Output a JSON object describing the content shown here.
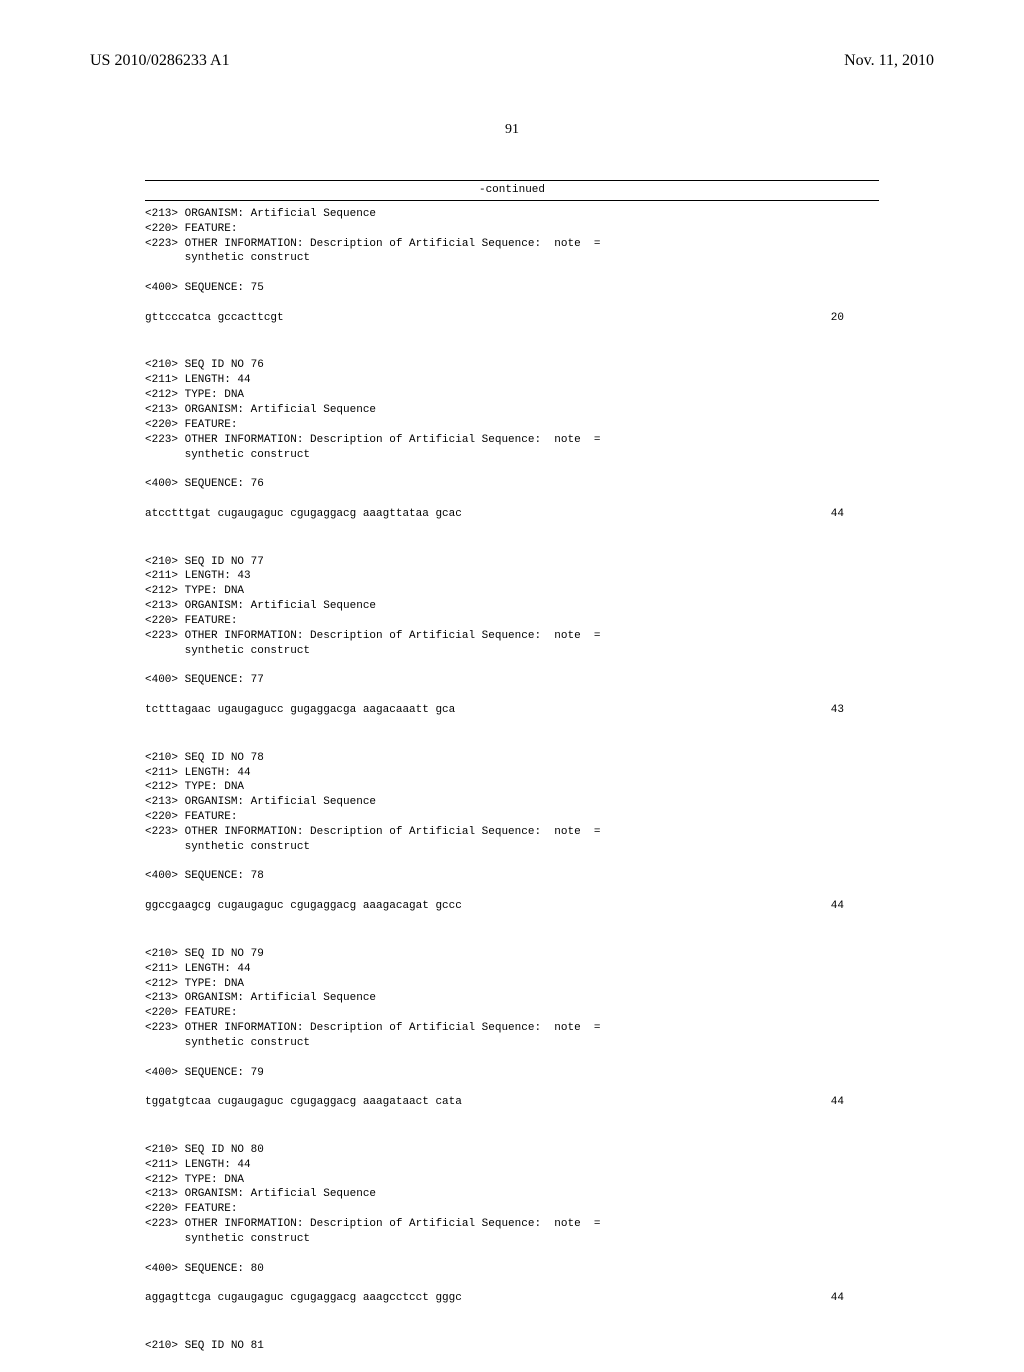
{
  "header": {
    "left": "US 2010/0286233 A1",
    "right": "Nov. 11, 2010",
    "page": "91"
  },
  "continued": "-continued",
  "entries": [
    {
      "lines": [
        "<213> ORGANISM: Artificial Sequence",
        "<220> FEATURE:",
        "<223> OTHER INFORMATION: Description of Artificial Sequence:  note  =",
        "      synthetic construct",
        "",
        "<400> SEQUENCE: 75"
      ],
      "sequence": "gttcccatca gccacttcgt",
      "num": "20"
    },
    {
      "lines": [
        "<210> SEQ ID NO 76",
        "<211> LENGTH: 44",
        "<212> TYPE: DNA",
        "<213> ORGANISM: Artificial Sequence",
        "<220> FEATURE:",
        "<223> OTHER INFORMATION: Description of Artificial Sequence:  note  =",
        "      synthetic construct",
        "",
        "<400> SEQUENCE: 76"
      ],
      "sequence": "atcctttgat cugaugaguc cgugaggacg aaagttataa gcac",
      "num": "44"
    },
    {
      "lines": [
        "<210> SEQ ID NO 77",
        "<211> LENGTH: 43",
        "<212> TYPE: DNA",
        "<213> ORGANISM: Artificial Sequence",
        "<220> FEATURE:",
        "<223> OTHER INFORMATION: Description of Artificial Sequence:  note  =",
        "      synthetic construct",
        "",
        "<400> SEQUENCE: 77"
      ],
      "sequence": "tctttagaac ugaugagucc gugaggacga aagacaaatt gca",
      "num": "43"
    },
    {
      "lines": [
        "<210> SEQ ID NO 78",
        "<211> LENGTH: 44",
        "<212> TYPE: DNA",
        "<213> ORGANISM: Artificial Sequence",
        "<220> FEATURE:",
        "<223> OTHER INFORMATION: Description of Artificial Sequence:  note  =",
        "      synthetic construct",
        "",
        "<400> SEQUENCE: 78"
      ],
      "sequence": "ggccgaagcg cugaugaguc cgugaggacg aaagacagat gccc",
      "num": "44"
    },
    {
      "lines": [
        "<210> SEQ ID NO 79",
        "<211> LENGTH: 44",
        "<212> TYPE: DNA",
        "<213> ORGANISM: Artificial Sequence",
        "<220> FEATURE:",
        "<223> OTHER INFORMATION: Description of Artificial Sequence:  note  =",
        "      synthetic construct",
        "",
        "<400> SEQUENCE: 79"
      ],
      "sequence": "tggatgtcaa cugaugaguc cgugaggacg aaagataact cata",
      "num": "44"
    },
    {
      "lines": [
        "<210> SEQ ID NO 80",
        "<211> LENGTH: 44",
        "<212> TYPE: DNA",
        "<213> ORGANISM: Artificial Sequence",
        "<220> FEATURE:",
        "<223> OTHER INFORMATION: Description of Artificial Sequence:  note  =",
        "      synthetic construct",
        "",
        "<400> SEQUENCE: 80"
      ],
      "sequence": "aggagttcga cugaugaguc cgugaggacg aaagcctcct gggc",
      "num": "44"
    },
    {
      "lines": [
        "<210> SEQ ID NO 81"
      ],
      "sequence": "",
      "num": ""
    }
  ]
}
